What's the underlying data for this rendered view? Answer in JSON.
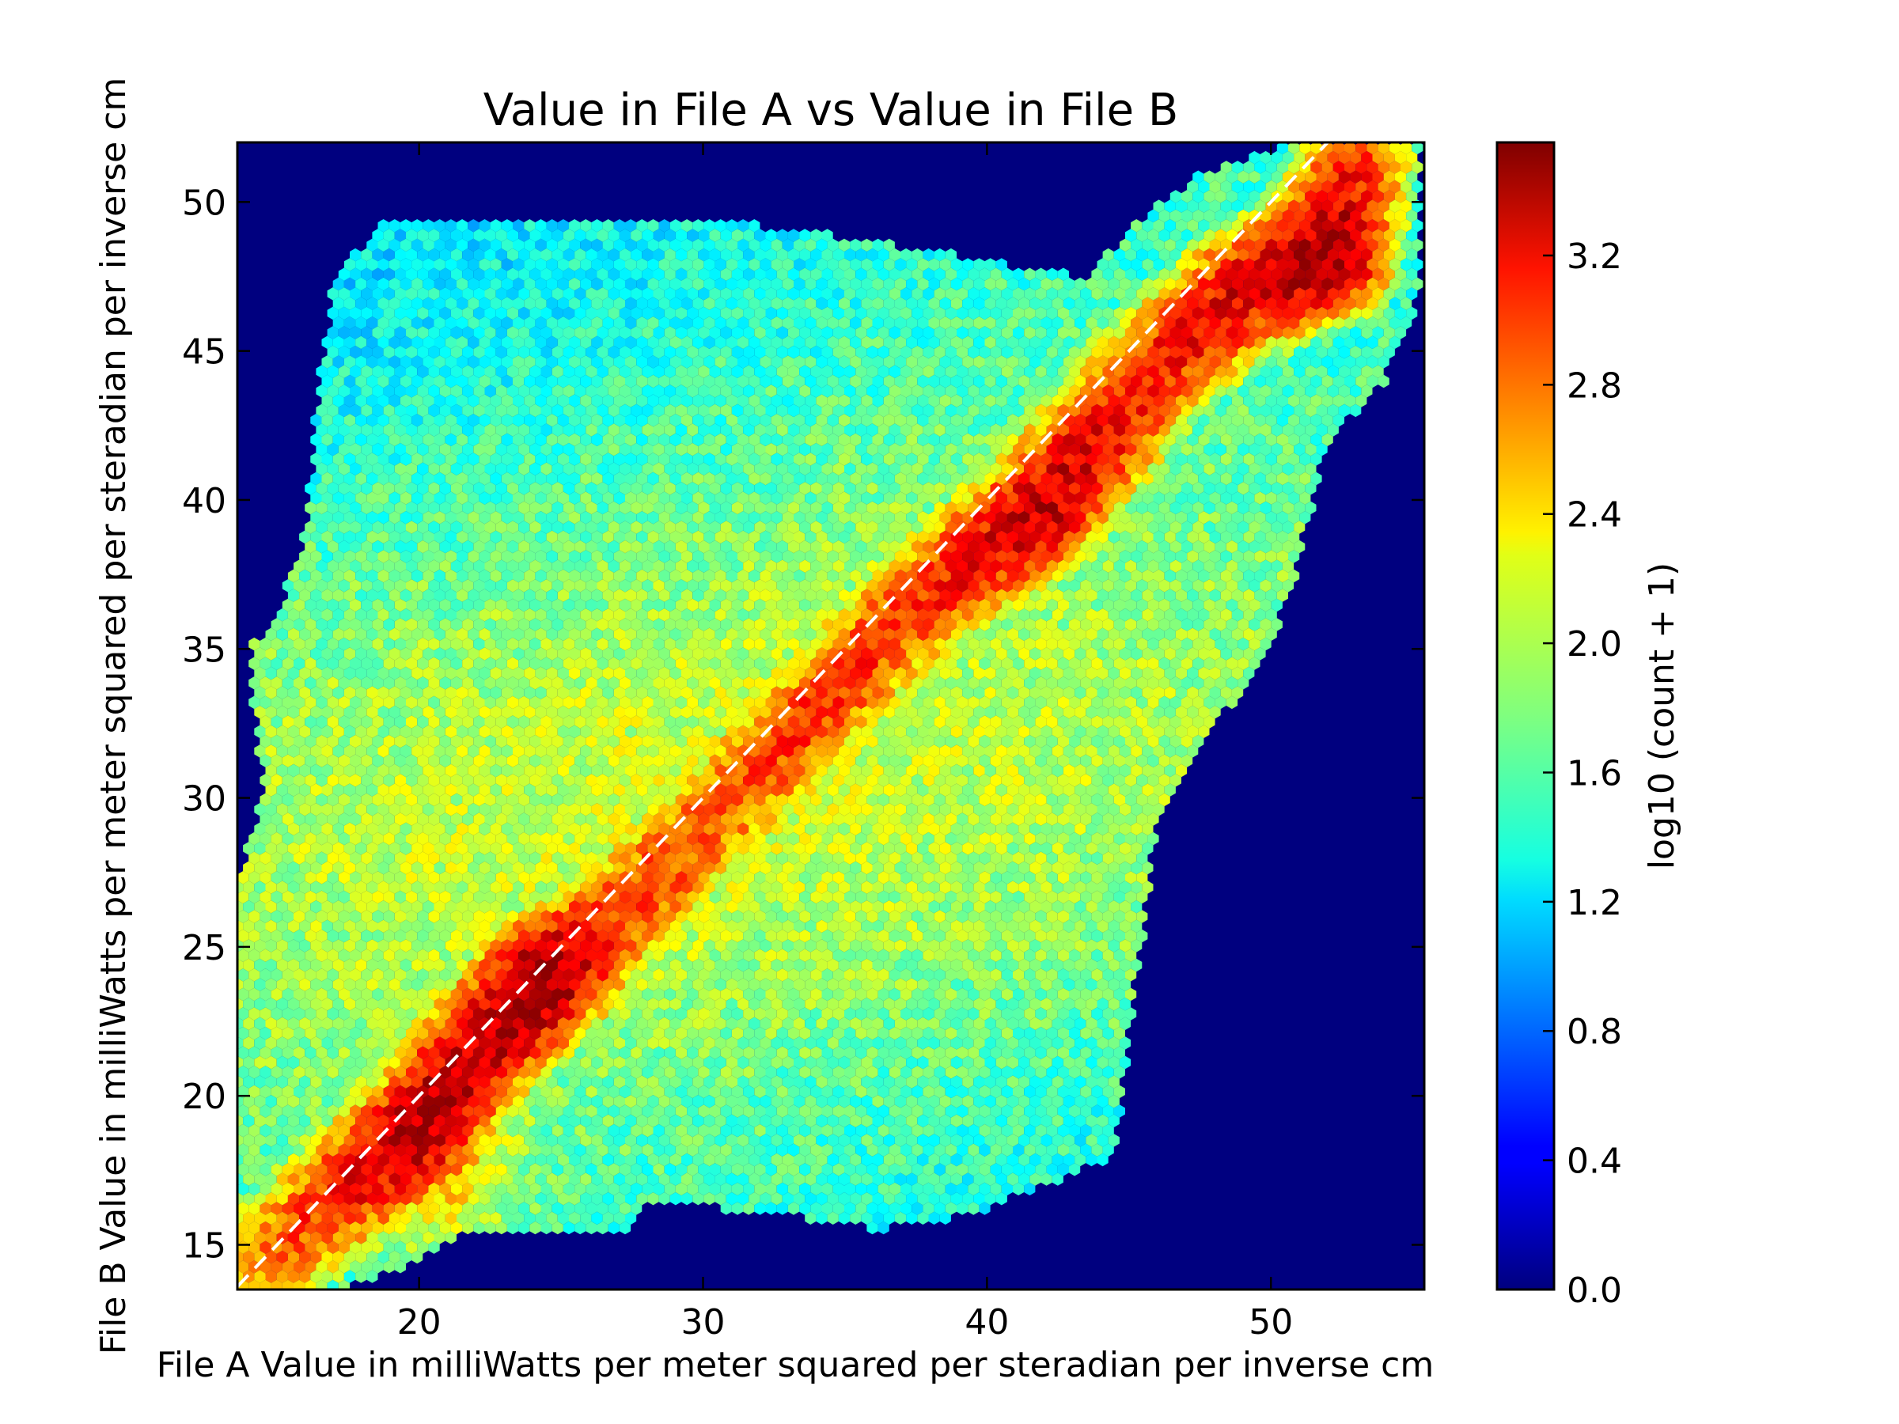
{
  "chart_data": {
    "type": "heatmap",
    "subtype": "hexbin",
    "title": "Value in File A vs Value in File B",
    "xlabel": "File A Value in milliWatts per meter squared per steradian per inverse cm",
    "ylabel": "File B Value in milliWatts per meter squared per steradian per inverse cm",
    "xlim": [
      13.6,
      55.4
    ],
    "ylim": [
      13.5,
      52.0
    ],
    "xticks": [
      20,
      30,
      40,
      50
    ],
    "yticks": [
      15,
      20,
      25,
      30,
      35,
      40,
      45,
      50
    ],
    "grid": false,
    "background_color": "#00007f",
    "colormap": "jet",
    "colorbar": {
      "label": "log10 (count + 1)",
      "range": [
        0.0,
        3.55
      ],
      "ticks": [
        0.0,
        0.4,
        0.8,
        1.2,
        1.6,
        2.0,
        2.4,
        2.8,
        3.2
      ],
      "tick_labels": [
        "0.0",
        "0.4",
        "0.8",
        "1.2",
        "1.6",
        "2.0",
        "2.4",
        "2.8",
        "3.2"
      ]
    },
    "reference_line": {
      "style": "dashed",
      "color": "#ffffff",
      "from": [
        13.6,
        13.6
      ],
      "to": [
        52.0,
        52.0
      ]
    },
    "density_ridge": [
      {
        "x": 14,
        "y": 14,
        "value": 2.6
      },
      {
        "x": 17,
        "y": 16.5,
        "value": 3.0
      },
      {
        "x": 20,
        "y": 18.8,
        "value": 3.4
      },
      {
        "x": 22,
        "y": 21.5,
        "value": 3.3
      },
      {
        "x": 24.5,
        "y": 24,
        "value": 3.5
      },
      {
        "x": 27,
        "y": 26,
        "value": 2.9
      },
      {
        "x": 31,
        "y": 30,
        "value": 2.8
      },
      {
        "x": 33,
        "y": 32,
        "value": 2.9
      },
      {
        "x": 37,
        "y": 36,
        "value": 2.9
      },
      {
        "x": 42,
        "y": 39.8,
        "value": 3.3
      },
      {
        "x": 46,
        "y": 44.5,
        "value": 3.0
      },
      {
        "x": 49,
        "y": 47,
        "value": 3.2
      },
      {
        "x": 52,
        "y": 48.3,
        "value": 3.5
      },
      {
        "x": 53,
        "y": 51.5,
        "value": 2.9
      }
    ],
    "coverage_boundary": [
      [
        13.6,
        13.6
      ],
      [
        17.5,
        13.6
      ],
      [
        20,
        14.5
      ],
      [
        22,
        15.5
      ],
      [
        27.5,
        15.5
      ],
      [
        28,
        16.5
      ],
      [
        33,
        16
      ],
      [
        36,
        15.5
      ],
      [
        39.5,
        16
      ],
      [
        42,
        17
      ],
      [
        44.5,
        18
      ],
      [
        45,
        22
      ],
      [
        46,
        29
      ],
      [
        47,
        31
      ],
      [
        50,
        35
      ],
      [
        51,
        38
      ],
      [
        52,
        42
      ],
      [
        54,
        44
      ],
      [
        55.3,
        47
      ],
      [
        55.3,
        52
      ],
      [
        51,
        52
      ],
      [
        47.5,
        51
      ],
      [
        45.5,
        49.5
      ],
      [
        43.5,
        47.5
      ],
      [
        37,
        48.5
      ],
      [
        34,
        49
      ],
      [
        29,
        49.5
      ],
      [
        24,
        49.5
      ],
      [
        19,
        49.5
      ],
      [
        17,
        47.5
      ],
      [
        16.5,
        44
      ],
      [
        16,
        39
      ],
      [
        15,
        36
      ],
      [
        14,
        35
      ],
      [
        14.5,
        30
      ],
      [
        13.6,
        27
      ]
    ]
  }
}
